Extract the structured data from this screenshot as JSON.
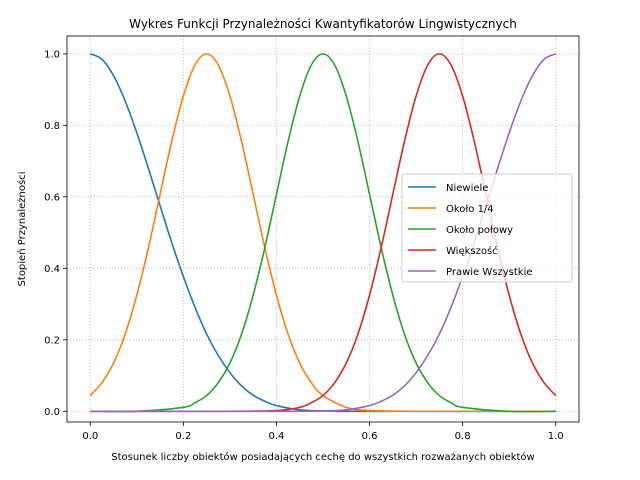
{
  "chart_data": {
    "type": "line",
    "title": "Wykres Funkcji Przynależności Kwantyfikatorów Lingwistycznych",
    "xlabel": "Stosunek liczby obiektów posiadających cechę do wszystkich rozważanych obiektów",
    "ylabel": "Stopień Przynależności",
    "xlim": [
      -0.05,
      1.05
    ],
    "ylim": [
      -0.03,
      1.05
    ],
    "xticks": [
      0.0,
      0.2,
      0.4,
      0.6,
      0.8,
      1.0
    ],
    "xtick_labels": [
      "0.0",
      "0.2",
      "0.4",
      "0.6",
      "0.8",
      "1.0"
    ],
    "yticks": [
      0.0,
      0.2,
      0.4,
      0.6,
      0.8,
      1.0
    ],
    "ytick_labels": [
      "0.0",
      "0.2",
      "0.4",
      "0.6",
      "0.8",
      "1.0"
    ],
    "grid": true,
    "legend_position": "center-right",
    "series": [
      {
        "name": "Niewiele",
        "color": "#1f77b4",
        "x": [
          0.0,
          0.025,
          0.05,
          0.075,
          0.1,
          0.125,
          0.15,
          0.175,
          0.2,
          0.225,
          0.25,
          0.275,
          0.3,
          0.325,
          0.35,
          0.375,
          0.4,
          0.45,
          0.5,
          0.6,
          0.7,
          0.8,
          0.9,
          1.0
        ],
        "y": [
          1.0,
          0.985,
          0.939,
          0.868,
          0.779,
          0.679,
          0.575,
          0.472,
          0.377,
          0.291,
          0.216,
          0.156,
          0.108,
          0.071,
          0.045,
          0.028,
          0.016,
          0.004,
          0.001,
          0.0,
          0.0,
          0.0,
          0.0,
          0.0
        ]
      },
      {
        "name": "Około 1/4",
        "color": "#ff7f0e",
        "x": [
          0.0,
          0.025,
          0.05,
          0.075,
          0.1,
          0.125,
          0.15,
          0.175,
          0.2,
          0.225,
          0.25,
          0.275,
          0.3,
          0.325,
          0.35,
          0.375,
          0.4,
          0.425,
          0.45,
          0.475,
          0.5,
          0.55,
          0.6,
          0.7,
          0.8,
          0.9,
          1.0
        ],
        "y": [
          0.044,
          0.08,
          0.135,
          0.216,
          0.325,
          0.458,
          0.607,
          0.755,
          0.882,
          0.969,
          1.0,
          0.969,
          0.882,
          0.755,
          0.607,
          0.458,
          0.325,
          0.216,
          0.135,
          0.08,
          0.044,
          0.011,
          0.002,
          0.0,
          0.0,
          0.0,
          0.0
        ]
      },
      {
        "name": "Około połowy",
        "color": "#2ca02c",
        "x": [
          0.0,
          0.1,
          0.2,
          0.225,
          0.25,
          0.275,
          0.3,
          0.325,
          0.35,
          0.375,
          0.4,
          0.425,
          0.45,
          0.475,
          0.5,
          0.525,
          0.55,
          0.575,
          0.6,
          0.625,
          0.65,
          0.675,
          0.7,
          0.725,
          0.75,
          0.775,
          0.8,
          0.9,
          1.0
        ],
        "y": [
          0.0,
          0.0,
          0.011,
          0.024,
          0.044,
          0.08,
          0.135,
          0.216,
          0.325,
          0.458,
          0.607,
          0.755,
          0.882,
          0.969,
          1.0,
          0.969,
          0.882,
          0.755,
          0.607,
          0.458,
          0.325,
          0.216,
          0.135,
          0.08,
          0.044,
          0.024,
          0.011,
          0.0,
          0.0
        ]
      },
      {
        "name": "Większość",
        "color": "#d62728",
        "x": [
          0.0,
          0.1,
          0.2,
          0.3,
          0.4,
          0.45,
          0.475,
          0.5,
          0.525,
          0.55,
          0.575,
          0.6,
          0.625,
          0.65,
          0.675,
          0.7,
          0.725,
          0.75,
          0.775,
          0.8,
          0.825,
          0.85,
          0.875,
          0.9,
          0.925,
          0.95,
          0.975,
          1.0
        ],
        "y": [
          0.0,
          0.0,
          0.0,
          0.0,
          0.002,
          0.011,
          0.024,
          0.044,
          0.08,
          0.135,
          0.216,
          0.325,
          0.458,
          0.607,
          0.755,
          0.882,
          0.969,
          1.0,
          0.969,
          0.882,
          0.755,
          0.607,
          0.458,
          0.325,
          0.216,
          0.135,
          0.08,
          0.044
        ]
      },
      {
        "name": "Prawie Wszystkie",
        "color": "#9467bd",
        "x": [
          0.0,
          0.2,
          0.4,
          0.5,
          0.55,
          0.6,
          0.625,
          0.65,
          0.675,
          0.7,
          0.725,
          0.75,
          0.775,
          0.8,
          0.825,
          0.85,
          0.875,
          0.9,
          0.925,
          0.95,
          0.975,
          1.0
        ],
        "y": [
          0.0,
          0.0,
          0.0,
          0.001,
          0.004,
          0.016,
          0.028,
          0.045,
          0.071,
          0.108,
          0.156,
          0.216,
          0.291,
          0.377,
          0.472,
          0.575,
          0.679,
          0.779,
          0.868,
          0.939,
          0.985,
          1.0
        ]
      }
    ]
  }
}
